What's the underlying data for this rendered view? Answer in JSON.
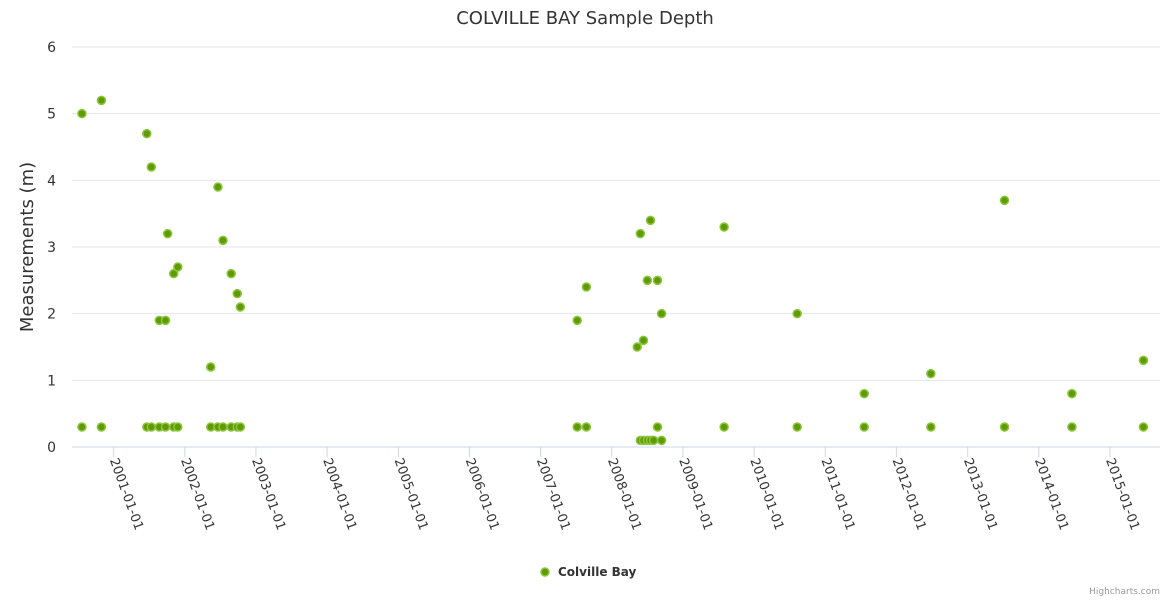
{
  "chart_data": {
    "type": "scatter",
    "title": "COLVILLE BAY Sample Depth",
    "xlabel": "",
    "ylabel": "Measurements (m)",
    "xlim": [
      "2000-06-01",
      "2015-09-15"
    ],
    "ylim": [
      0,
      6
    ],
    "y_ticks": [
      "0",
      "1",
      "2",
      "3",
      "4",
      "5",
      "6"
    ],
    "x_ticks": [
      "2001-01-01",
      "2002-01-01",
      "2003-01-01",
      "2004-01-01",
      "2005-01-01",
      "2006-01-01",
      "2007-01-01",
      "2008-01-01",
      "2009-01-01",
      "2010-01-01",
      "2011-01-01",
      "2012-01-01",
      "2013-01-01",
      "2014-01-01",
      "2015-01-01"
    ],
    "grid": true,
    "legend_position": "bottom-center",
    "series": [
      {
        "name": "Colville Bay",
        "color": "#5f9a00",
        "points": [
          [
            "2000-07-22",
            5.0
          ],
          [
            "2000-07-22",
            0.3
          ],
          [
            "2000-10-30",
            5.2
          ],
          [
            "2000-10-30",
            0.3
          ],
          [
            "2001-06-20",
            4.7
          ],
          [
            "2001-06-20",
            0.3
          ],
          [
            "2001-07-13",
            4.2
          ],
          [
            "2001-07-13",
            0.3
          ],
          [
            "2001-08-23",
            1.9
          ],
          [
            "2001-08-23",
            0.3
          ],
          [
            "2001-09-24",
            1.9
          ],
          [
            "2001-09-24",
            0.3
          ],
          [
            "2001-10-05",
            3.2
          ],
          [
            "2001-11-05",
            2.6
          ],
          [
            "2001-11-05",
            0.3
          ],
          [
            "2001-11-26",
            2.7
          ],
          [
            "2001-11-26",
            0.3
          ],
          [
            "2002-05-14",
            1.2
          ],
          [
            "2002-05-14",
            0.3
          ],
          [
            "2002-06-20",
            3.9
          ],
          [
            "2002-06-20",
            0.3
          ],
          [
            "2002-07-16",
            3.1
          ],
          [
            "2002-07-16",
            0.3
          ],
          [
            "2002-08-27",
            2.6
          ],
          [
            "2002-08-27",
            0.3
          ],
          [
            "2002-09-27",
            2.3
          ],
          [
            "2002-09-27",
            0.3
          ],
          [
            "2002-10-13",
            2.1
          ],
          [
            "2002-10-13",
            0.3
          ],
          [
            "2007-07-08",
            1.9
          ],
          [
            "2007-07-08",
            0.3
          ],
          [
            "2007-08-24",
            2.4
          ],
          [
            "2007-08-24",
            0.3
          ],
          [
            "2008-05-11",
            1.5
          ],
          [
            "2008-05-27",
            3.2
          ],
          [
            "2008-05-27",
            0.1
          ],
          [
            "2008-06-12",
            1.6
          ],
          [
            "2008-06-12",
            0.1
          ],
          [
            "2008-07-02",
            2.5
          ],
          [
            "2008-07-02",
            0.1
          ],
          [
            "2008-07-18",
            3.4
          ],
          [
            "2008-07-18",
            0.1
          ],
          [
            "2008-08-03",
            0.1
          ],
          [
            "2008-08-23",
            2.5
          ],
          [
            "2008-08-23",
            0.3
          ],
          [
            "2008-09-13",
            2.0
          ],
          [
            "2008-09-13",
            0.1
          ],
          [
            "2009-07-31",
            3.3
          ],
          [
            "2009-07-31",
            0.3
          ],
          [
            "2010-08-10",
            2.0
          ],
          [
            "2010-08-10",
            0.3
          ],
          [
            "2011-07-20",
            0.8
          ],
          [
            "2011-07-20",
            0.3
          ],
          [
            "2012-06-26",
            1.1
          ],
          [
            "2012-06-26",
            0.3
          ],
          [
            "2013-07-09",
            3.7
          ],
          [
            "2013-07-09",
            0.3
          ],
          [
            "2014-06-20",
            0.8
          ],
          [
            "2014-06-20",
            0.3
          ],
          [
            "2015-06-22",
            1.3
          ],
          [
            "2015-06-22",
            0.3
          ]
        ]
      }
    ]
  },
  "credits": "Highcharts.com"
}
